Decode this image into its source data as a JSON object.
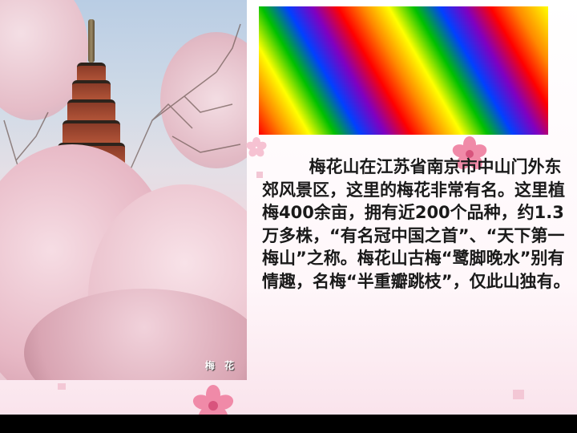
{
  "photo": {
    "caption": "梅 花"
  },
  "description": {
    "text": "        梅花山在江苏省南京市中山门外东郊风景区，这里的梅花非常有名。这里植梅400余亩，拥有近200个品种，约1.3万多株，“有名冠中国之首”、“天下第一梅山”之称。梅花山古梅“鹭脚晚水”别有情趣，名梅“半重瓣跳枝”，仅此山独有。"
  },
  "colors": {
    "flower_pink": "#f08aa8",
    "flower_center": "#d8547d",
    "bottom_bar": "#000000"
  }
}
